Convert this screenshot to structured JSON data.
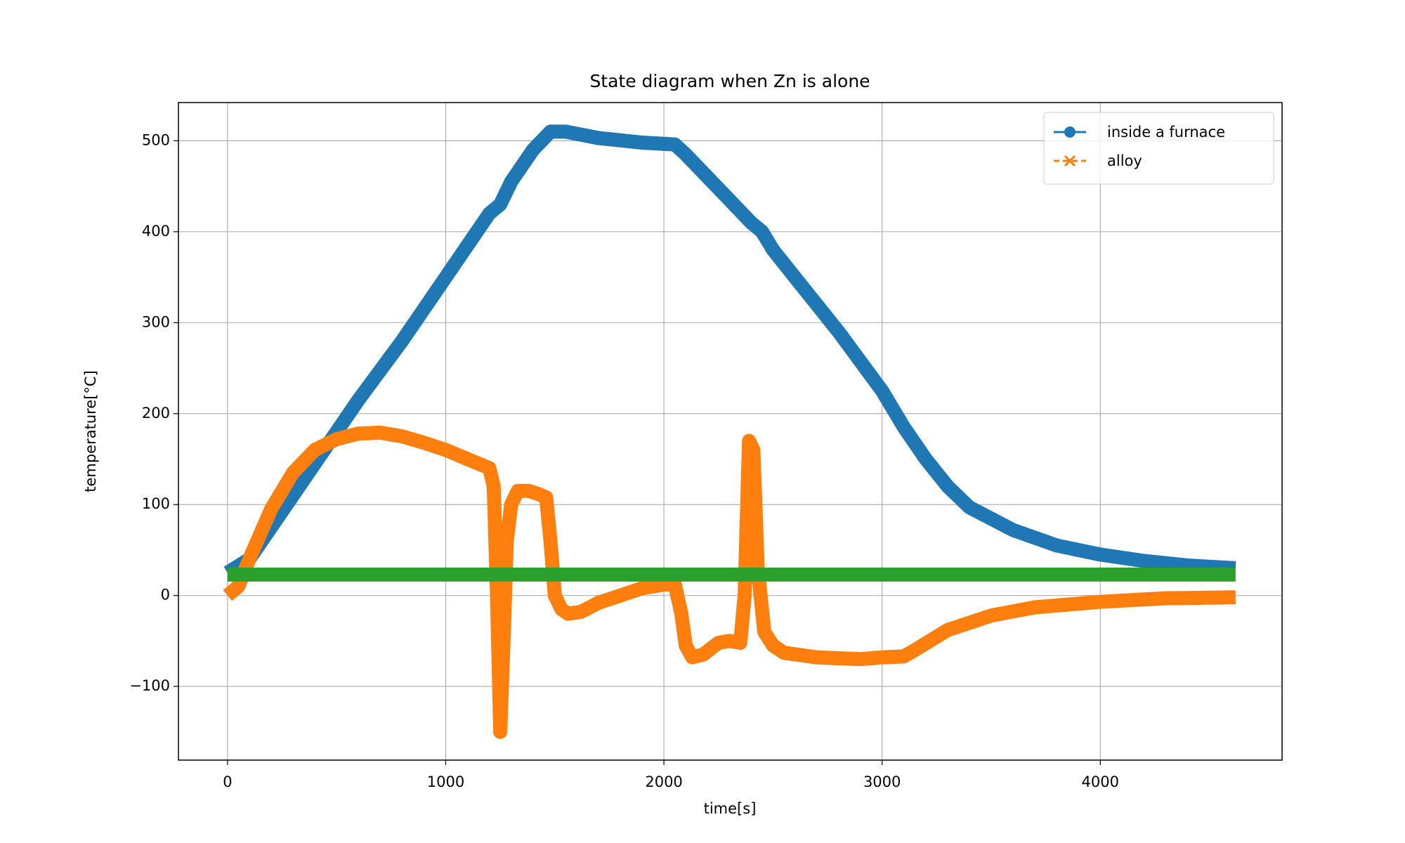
{
  "chart_data": {
    "type": "line",
    "title": "State diagram when Zn is alone",
    "x_label": "time[s]",
    "y_label": "temperature[°C]",
    "xlim": [
      -225,
      4833
    ],
    "ylim": [
      -181,
      542
    ],
    "xticks": [
      0,
      1000,
      2000,
      3000,
      4000
    ],
    "yticks": [
      {
        "value": -100,
        "label": "−100"
      },
      0,
      100,
      200,
      300,
      400,
      500
    ],
    "grid": true,
    "legend": "upper right",
    "series": [
      {
        "name": "inside a furnace",
        "color": "#1f77b4",
        "marker": "o",
        "linestyle": "solid",
        "x": [
          0,
          100,
          200,
          400,
          600,
          800,
          1000,
          1200,
          1250,
          1300,
          1400,
          1480,
          1550,
          1700,
          1900,
          2050,
          2100,
          2200,
          2300,
          2400,
          2450,
          2500,
          2600,
          2800,
          3000,
          3100,
          3200,
          3300,
          3400,
          3600,
          3800,
          4000,
          4200,
          4400,
          4620
        ],
        "values": [
          25,
          40,
          75,
          145,
          215,
          280,
          350,
          420,
          430,
          455,
          490,
          510,
          510,
          503,
          498,
          496,
          485,
          460,
          435,
          410,
          400,
          380,
          350,
          290,
          225,
          185,
          150,
          120,
          97,
          72,
          55,
          45,
          38,
          33,
          30
        ]
      },
      {
        "name": "alloy",
        "color": "#ff7f0e",
        "marker": "x",
        "linestyle": "dashed",
        "x": [
          0,
          50,
          100,
          200,
          300,
          400,
          500,
          600,
          700,
          800,
          900,
          1000,
          1100,
          1200,
          1220,
          1235,
          1250,
          1265,
          1280,
          1300,
          1330,
          1380,
          1420,
          1460,
          1480,
          1500,
          1530,
          1560,
          1620,
          1700,
          1800,
          1900,
          2000,
          2050,
          2080,
          2100,
          2130,
          2180,
          2250,
          2300,
          2350,
          2370,
          2390,
          2410,
          2430,
          2460,
          2500,
          2550,
          2700,
          2900,
          3000,
          3100,
          3150,
          3300,
          3500,
          3700,
          4000,
          4300,
          4620
        ],
        "values": [
          0,
          10,
          40,
          95,
          135,
          160,
          172,
          178,
          179,
          175,
          168,
          160,
          150,
          140,
          120,
          0,
          -150,
          -50,
          60,
          100,
          115,
          115,
          112,
          108,
          60,
          0,
          -15,
          -20,
          -18,
          -8,
          0,
          8,
          12,
          12,
          -20,
          -55,
          -68,
          -65,
          -52,
          -50,
          -52,
          0,
          170,
          160,
          30,
          -40,
          -55,
          -63,
          -68,
          -70,
          -68,
          -67,
          -60,
          -38,
          -22,
          -13,
          -7,
          -3,
          -2
        ]
      },
      {
        "color": "#2ca02c",
        "x": [
          0,
          4620
        ],
        "values": [
          23,
          23
        ]
      }
    ]
  }
}
